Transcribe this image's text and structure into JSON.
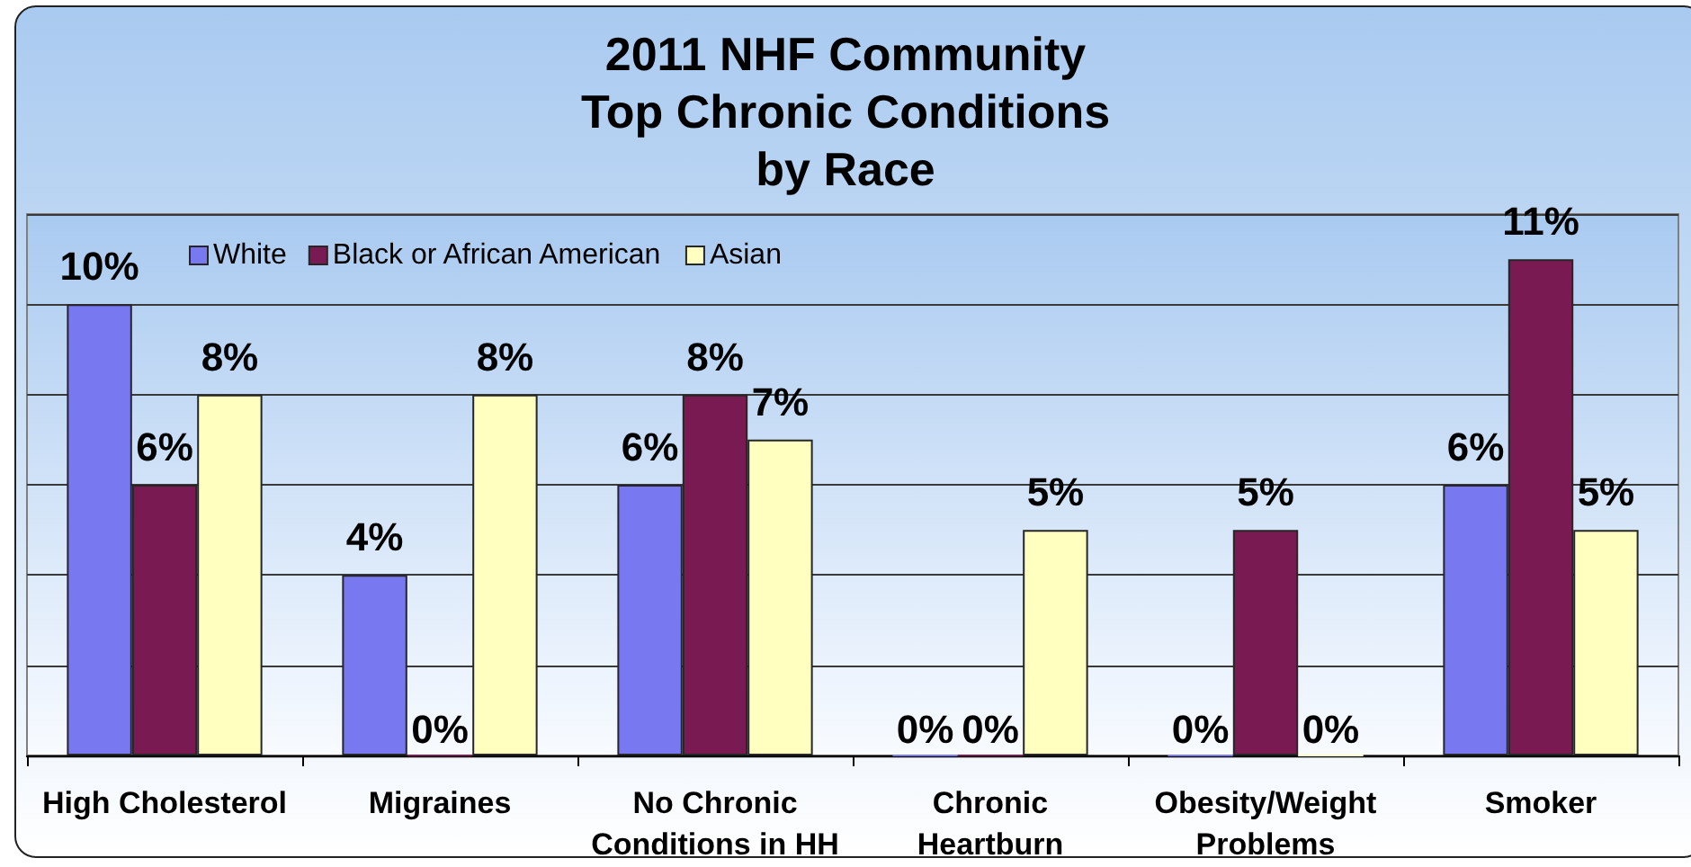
{
  "chart_data": {
    "type": "bar",
    "title": "2011 NHF Community\nTop Chronic Conditions\nby Race",
    "categories": [
      "High Cholesterol",
      "Migraines",
      "No Chronic\nConditions in HH",
      "Chronic\nHeartburn",
      "Obesity/Weight\nProblems",
      "Smoker"
    ],
    "series": [
      {
        "name": "White",
        "color": "#7878f0",
        "values": [
          10,
          4,
          6,
          0,
          0,
          6
        ],
        "value_labels": [
          "10%",
          "4%",
          "6%",
          "0%",
          "0%",
          "6%"
        ]
      },
      {
        "name": "Black or African American",
        "color": "#7a1a52",
        "values": [
          6,
          0,
          8,
          0,
          5,
          11
        ],
        "value_labels": [
          "6%",
          "0%",
          "8%",
          "0%",
          "5%",
          "11%"
        ]
      },
      {
        "name": "Asian",
        "color": "#ffffc0",
        "values": [
          8,
          8,
          7,
          5,
          0,
          5
        ],
        "value_labels": [
          "8%",
          "8%",
          "7%",
          "5%",
          "0%",
          "5%"
        ]
      }
    ],
    "ylim": [
      0,
      12
    ],
    "yticks": [
      {
        "value": 0,
        "label": null
      },
      {
        "value": 2,
        "label": null
      },
      {
        "value": 4,
        "label": null
      },
      {
        "value": 6,
        "label": null
      },
      {
        "value": 8,
        "label": null
      },
      {
        "value": 10,
        "label": null
      },
      {
        "value": 12,
        "label": null
      }
    ],
    "grid": "y",
    "legend": "top left"
  }
}
